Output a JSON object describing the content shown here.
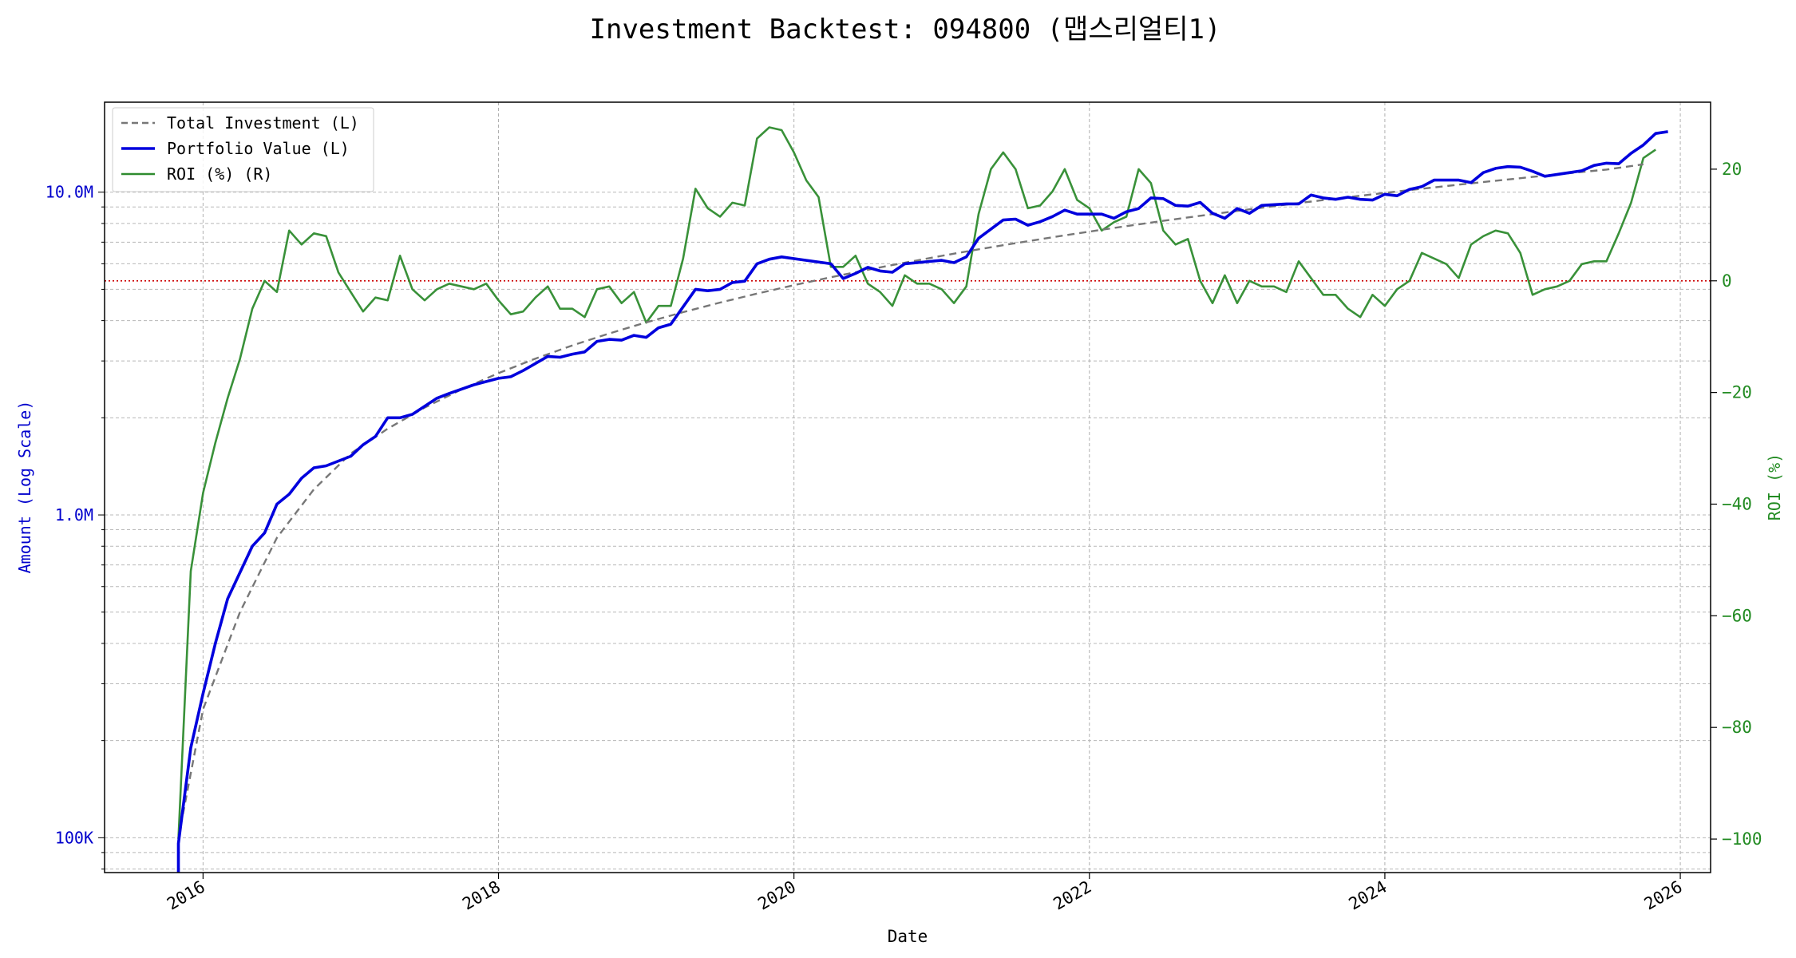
{
  "chart_data": {
    "type": "line",
    "title": "Investment Backtest: 094800 (맵스리얼티1)",
    "xlabel": "Date",
    "ylabel_left": "Amount (Log Scale)",
    "ylabel_right": "ROI (%)",
    "left_scale": "log",
    "left_ylim": [
      78000,
      19000000
    ],
    "right_ylim": [
      -106,
      32
    ],
    "xlim": [
      "2015-05-01",
      "2026-03-15"
    ],
    "x_ticks": [
      "2016",
      "2018",
      "2020",
      "2022",
      "2024",
      "2026"
    ],
    "left_ticks": [
      {
        "value": 100000,
        "label": "100K"
      },
      {
        "value": 1000000,
        "label": "1.0M"
      },
      {
        "value": 10000000,
        "label": "10.0M"
      }
    ],
    "right_ticks": [
      -100,
      -80,
      -60,
      -40,
      -20,
      0,
      20
    ],
    "reference_line": {
      "axis": "right",
      "value": 0,
      "color": "#cc0000",
      "style": "dotted"
    },
    "grid": true,
    "legend_position": "top-left",
    "legend": [
      {
        "label": "Total Investment (L)",
        "color": "#777777",
        "style": "dashed"
      },
      {
        "label": "Portfolio Value (L)",
        "color": "#0000dd",
        "style": "solid"
      },
      {
        "label": "ROI (%) (R)",
        "color": "#2e8b2e",
        "style": "solid"
      }
    ],
    "series": [
      {
        "name": "Total Investment (L)",
        "axis": "left",
        "color": "#777777",
        "points": [
          [
            "2015-11",
            100000
          ],
          [
            "2016-01",
            250000
          ],
          [
            "2016-04",
            500000
          ],
          [
            "2016-07",
            850000
          ],
          [
            "2016-10",
            1200000
          ],
          [
            "2017-01",
            1550000
          ],
          [
            "2017-04",
            1850000
          ],
          [
            "2017-07",
            2150000
          ],
          [
            "2017-10",
            2450000
          ],
          [
            "2018-01",
            2750000
          ],
          [
            "2018-04",
            3050000
          ],
          [
            "2018-07",
            3350000
          ],
          [
            "2018-10",
            3650000
          ],
          [
            "2019-01",
            3950000
          ],
          [
            "2019-04",
            4250000
          ],
          [
            "2019-07",
            4550000
          ],
          [
            "2019-10",
            4850000
          ],
          [
            "2020-01",
            5150000
          ],
          [
            "2020-04",
            5450000
          ],
          [
            "2020-07",
            5750000
          ],
          [
            "2020-10",
            6050000
          ],
          [
            "2021-01",
            6350000
          ],
          [
            "2021-04",
            6650000
          ],
          [
            "2021-07",
            6950000
          ],
          [
            "2021-10",
            7250000
          ],
          [
            "2022-01",
            7550000
          ],
          [
            "2022-04",
            7850000
          ],
          [
            "2022-07",
            8150000
          ],
          [
            "2022-10",
            8450000
          ],
          [
            "2023-01",
            8750000
          ],
          [
            "2023-04",
            9050000
          ],
          [
            "2023-07",
            9350000
          ],
          [
            "2023-10",
            9650000
          ],
          [
            "2024-01",
            9950000
          ],
          [
            "2024-04",
            10250000
          ],
          [
            "2024-07",
            10550000
          ],
          [
            "2024-10",
            10850000
          ],
          [
            "2025-01",
            11150000
          ],
          [
            "2025-04",
            11450000
          ],
          [
            "2025-07",
            11750000
          ],
          [
            "2025-10",
            12200000
          ]
        ]
      },
      {
        "name": "Portfolio Value (L)",
        "axis": "left",
        "color": "#0000dd",
        "points": [
          [
            "2015-11",
            60000
          ],
          [
            "2015-11",
            96000
          ],
          [
            "2015-12",
            190000
          ],
          [
            "2016-01",
            280000
          ],
          [
            "2016-02",
            400000
          ],
          [
            "2016-03",
            550000
          ],
          [
            "2016-05",
            800000
          ],
          [
            "2016-06",
            880000
          ],
          [
            "2016-07",
            1080000
          ],
          [
            "2016-08",
            1160000
          ],
          [
            "2016-09",
            1300000
          ],
          [
            "2016-10",
            1400000
          ],
          [
            "2016-11",
            1420000
          ],
          [
            "2017-01",
            1520000
          ],
          [
            "2017-02",
            1650000
          ],
          [
            "2017-03",
            1750000
          ],
          [
            "2017-04",
            2000000
          ],
          [
            "2017-05",
            2000000
          ],
          [
            "2017-06",
            2050000
          ],
          [
            "2017-08",
            2300000
          ],
          [
            "2017-09",
            2380000
          ],
          [
            "2017-11",
            2530000
          ],
          [
            "2018-01",
            2650000
          ],
          [
            "2018-02",
            2680000
          ],
          [
            "2018-03",
            2800000
          ],
          [
            "2018-05",
            3100000
          ],
          [
            "2018-06",
            3080000
          ],
          [
            "2018-07",
            3150000
          ],
          [
            "2018-08",
            3200000
          ],
          [
            "2018-09",
            3450000
          ],
          [
            "2018-10",
            3500000
          ],
          [
            "2018-11",
            3480000
          ],
          [
            "2018-12",
            3600000
          ],
          [
            "2019-01",
            3550000
          ],
          [
            "2019-02",
            3800000
          ],
          [
            "2019-03",
            3900000
          ],
          [
            "2019-05",
            5000000
          ],
          [
            "2019-06",
            4950000
          ],
          [
            "2019-07",
            5000000
          ],
          [
            "2019-08",
            5250000
          ],
          [
            "2019-09",
            5300000
          ],
          [
            "2019-10",
            6000000
          ],
          [
            "2019-11",
            6200000
          ],
          [
            "2019-12",
            6300000
          ],
          [
            "2020-02",
            6150000
          ],
          [
            "2020-04",
            6000000
          ],
          [
            "2020-05",
            5400000
          ],
          [
            "2020-06",
            5600000
          ],
          [
            "2020-07",
            5850000
          ],
          [
            "2020-08",
            5700000
          ],
          [
            "2020-09",
            5650000
          ],
          [
            "2020-10",
            6000000
          ],
          [
            "2020-12",
            6100000
          ],
          [
            "2021-01",
            6150000
          ],
          [
            "2021-02",
            6050000
          ],
          [
            "2021-03",
            6300000
          ],
          [
            "2021-04",
            7200000
          ],
          [
            "2021-06",
            8200000
          ],
          [
            "2021-07",
            8250000
          ],
          [
            "2021-08",
            7900000
          ],
          [
            "2021-09",
            8100000
          ],
          [
            "2021-10",
            8400000
          ],
          [
            "2021-11",
            8800000
          ],
          [
            "2021-12",
            8550000
          ],
          [
            "2022-02",
            8550000
          ],
          [
            "2022-03",
            8300000
          ],
          [
            "2022-04",
            8700000
          ],
          [
            "2022-05",
            8900000
          ],
          [
            "2022-06",
            9600000
          ],
          [
            "2022-07",
            9550000
          ],
          [
            "2022-08",
            9100000
          ],
          [
            "2022-09",
            9050000
          ],
          [
            "2022-10",
            9300000
          ],
          [
            "2022-11",
            8600000
          ],
          [
            "2022-12",
            8300000
          ],
          [
            "2023-01",
            8900000
          ],
          [
            "2023-02",
            8600000
          ],
          [
            "2023-03",
            9100000
          ],
          [
            "2023-05",
            9200000
          ],
          [
            "2023-06",
            9200000
          ],
          [
            "2023-07",
            9800000
          ],
          [
            "2023-08",
            9600000
          ],
          [
            "2023-09",
            9500000
          ],
          [
            "2023-10",
            9650000
          ],
          [
            "2023-11",
            9500000
          ],
          [
            "2023-12",
            9450000
          ],
          [
            "2024-01",
            9850000
          ],
          [
            "2024-02",
            9750000
          ],
          [
            "2024-03",
            10200000
          ],
          [
            "2024-04",
            10400000
          ],
          [
            "2024-05",
            10900000
          ],
          [
            "2024-07",
            10900000
          ],
          [
            "2024-08",
            10700000
          ],
          [
            "2024-09",
            11500000
          ],
          [
            "2024-10",
            11850000
          ],
          [
            "2024-11",
            12000000
          ],
          [
            "2024-12",
            11950000
          ],
          [
            "2025-01",
            11600000
          ],
          [
            "2025-02",
            11200000
          ],
          [
            "2025-04",
            11500000
          ],
          [
            "2025-05",
            11650000
          ],
          [
            "2025-06",
            12100000
          ],
          [
            "2025-07",
            12300000
          ],
          [
            "2025-08",
            12250000
          ],
          [
            "2025-09",
            13200000
          ],
          [
            "2025-10",
            14000000
          ],
          [
            "2025-11",
            15200000
          ],
          [
            "2025-12",
            15400000
          ]
        ]
      },
      {
        "name": "ROI (%) (R)",
        "axis": "right",
        "color": "#2e8b2e",
        "points": [
          [
            "2015-11",
            -100
          ],
          [
            "2015-12",
            -52
          ],
          [
            "2016-01",
            -38
          ],
          [
            "2016-02",
            -29
          ],
          [
            "2016-03",
            -21
          ],
          [
            "2016-04",
            -14
          ],
          [
            "2016-05",
            -5
          ],
          [
            "2016-06",
            0
          ],
          [
            "2016-07",
            -2
          ],
          [
            "2016-08",
            9
          ],
          [
            "2016-09",
            6.5
          ],
          [
            "2016-10",
            8.5
          ],
          [
            "2016-11",
            8
          ],
          [
            "2016-12",
            1.5
          ],
          [
            "2017-01",
            -2
          ],
          [
            "2017-02",
            -5.5
          ],
          [
            "2017-03",
            -3
          ],
          [
            "2017-04",
            -3.5
          ],
          [
            "2017-05",
            4.5
          ],
          [
            "2017-06",
            -1.5
          ],
          [
            "2017-07",
            -3.5
          ],
          [
            "2017-08",
            -1.5
          ],
          [
            "2017-09",
            -0.5
          ],
          [
            "2017-10",
            -1
          ],
          [
            "2017-11",
            -1.5
          ],
          [
            "2017-12",
            -0.5
          ],
          [
            "2018-01",
            -3.5
          ],
          [
            "2018-02",
            -6
          ],
          [
            "2018-03",
            -5.5
          ],
          [
            "2018-04",
            -3
          ],
          [
            "2018-05",
            -1
          ],
          [
            "2018-06",
            -5
          ],
          [
            "2018-07",
            -5
          ],
          [
            "2018-08",
            -6.5
          ],
          [
            "2018-09",
            -1.5
          ],
          [
            "2018-10",
            -1
          ],
          [
            "2018-11",
            -4
          ],
          [
            "2018-12",
            -2
          ],
          [
            "2019-01",
            -7.5
          ],
          [
            "2019-02",
            -4.5
          ],
          [
            "2019-03",
            -4.5
          ],
          [
            "2019-04",
            4
          ],
          [
            "2019-05",
            16.5
          ],
          [
            "2019-06",
            13
          ],
          [
            "2019-07",
            11.5
          ],
          [
            "2019-08",
            14
          ],
          [
            "2019-09",
            13.5
          ],
          [
            "2019-10",
            25.5
          ],
          [
            "2019-11",
            27.5
          ],
          [
            "2019-12",
            27
          ],
          [
            "2020-01",
            23
          ],
          [
            "2020-02",
            18
          ],
          [
            "2020-03",
            15
          ],
          [
            "2020-04",
            2.5
          ],
          [
            "2020-05",
            2.5
          ],
          [
            "2020-06",
            4.5
          ],
          [
            "2020-07",
            -0.5
          ],
          [
            "2020-08",
            -2
          ],
          [
            "2020-09",
            -4.5
          ],
          [
            "2020-10",
            1
          ],
          [
            "2020-11",
            -0.5
          ],
          [
            "2020-12",
            -0.5
          ],
          [
            "2021-01",
            -1.5
          ],
          [
            "2021-02",
            -4
          ],
          [
            "2021-03",
            -1
          ],
          [
            "2021-04",
            12
          ],
          [
            "2021-05",
            20
          ],
          [
            "2021-06",
            23
          ],
          [
            "2021-07",
            20
          ],
          [
            "2021-08",
            13
          ],
          [
            "2021-09",
            13.5
          ],
          [
            "2021-10",
            16
          ],
          [
            "2021-11",
            20
          ],
          [
            "2021-12",
            14.5
          ],
          [
            "2022-01",
            13
          ],
          [
            "2022-02",
            9
          ],
          [
            "2022-03",
            10.5
          ],
          [
            "2022-04",
            11.5
          ],
          [
            "2022-05",
            20
          ],
          [
            "2022-06",
            17.5
          ],
          [
            "2022-07",
            9
          ],
          [
            "2022-08",
            6.5
          ],
          [
            "2022-09",
            7.5
          ],
          [
            "2022-10",
            0
          ],
          [
            "2022-11",
            -4
          ],
          [
            "2022-12",
            1
          ],
          [
            "2023-01",
            -4
          ],
          [
            "2023-02",
            0
          ],
          [
            "2023-03",
            -1
          ],
          [
            "2023-04",
            -1
          ],
          [
            "2023-05",
            -2
          ],
          [
            "2023-06",
            3.5
          ],
          [
            "2023-07",
            0.5
          ],
          [
            "2023-08",
            -2.5
          ],
          [
            "2023-09",
            -2.5
          ],
          [
            "2023-10",
            -5
          ],
          [
            "2023-11",
            -6.5
          ],
          [
            "2023-12",
            -2.5
          ],
          [
            "2024-01",
            -4.5
          ],
          [
            "2024-02",
            -1.5
          ],
          [
            "2024-03",
            0
          ],
          [
            "2024-04",
            5
          ],
          [
            "2024-05",
            4
          ],
          [
            "2024-06",
            3
          ],
          [
            "2024-07",
            0.5
          ],
          [
            "2024-08",
            6.5
          ],
          [
            "2024-09",
            8
          ],
          [
            "2024-10",
            9
          ],
          [
            "2024-11",
            8.5
          ],
          [
            "2024-12",
            5
          ],
          [
            "2025-01",
            -2.5
          ],
          [
            "2025-02",
            -1.5
          ],
          [
            "2025-03",
            -1
          ],
          [
            "2025-04",
            0
          ],
          [
            "2025-05",
            3
          ],
          [
            "2025-06",
            3.5
          ],
          [
            "2025-07",
            3.5
          ],
          [
            "2025-08",
            8.5
          ],
          [
            "2025-09",
            14
          ],
          [
            "2025-10",
            22
          ],
          [
            "2025-11",
            23.5
          ]
        ]
      }
    ]
  }
}
